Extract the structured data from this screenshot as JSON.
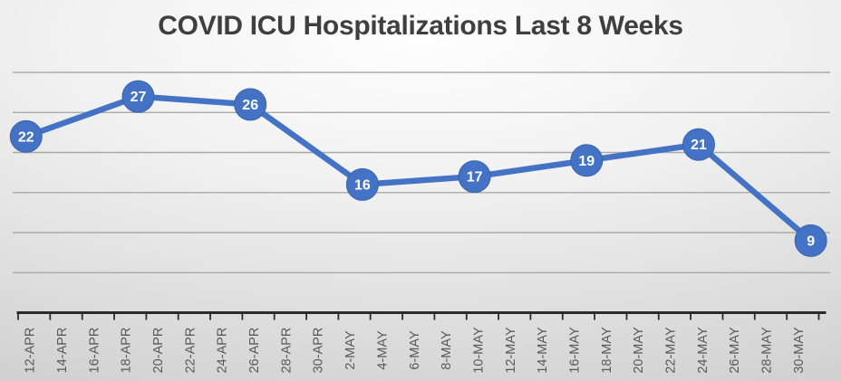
{
  "chart": {
    "colors": {
      "series_line": "#4472C4",
      "marker_fill": "#4472C4",
      "marker_border": "#3A62B0",
      "data_label_text": "#FFFFFF",
      "title_text": "#3F3F3F",
      "axis_label_text": "#595959",
      "gridline": "#A9A9A9",
      "axis_line": "#2B2B2B",
      "background_center": "#FEFEFE",
      "background_edge": "#C6C6C6"
    }
  },
  "chart_data": {
    "type": "line",
    "title": "COVID ICU Hospitalizations Last 8 Weeks",
    "xlabel": "",
    "ylabel": "",
    "ylim": [
      0,
      30
    ],
    "gridline_step": 5,
    "grid": "horizontal-only",
    "legend": "none",
    "marker_style": "filled-circle-with-centered-data-label",
    "x_axis_tick_labels": [
      "12-APR",
      "14-APR",
      "16-APR",
      "18-APR",
      "20-APR",
      "22-APR",
      "24-APR",
      "26-APR",
      "28-APR",
      "30-APR",
      "2-MAY",
      "4-MAY",
      "6-MAY",
      "8-MAY",
      "10-MAY",
      "12-MAY",
      "14-MAY",
      "16-MAY",
      "18-MAY",
      "20-MAY",
      "22-MAY",
      "24-MAY",
      "26-MAY",
      "28-MAY",
      "30-MAY"
    ],
    "x_axis_label_rotation_degrees": -90,
    "points": [
      {
        "date": "12-APR",
        "week_index": 0,
        "value": 22
      },
      {
        "date": "19-APR",
        "week_index": 1,
        "value": 27
      },
      {
        "date": "26-APR",
        "week_index": 2,
        "value": 26
      },
      {
        "date": "3-MAY",
        "week_index": 3,
        "value": 16
      },
      {
        "date": "10-MAY",
        "week_index": 4,
        "value": 17
      },
      {
        "date": "17-MAY",
        "week_index": 5,
        "value": 19
      },
      {
        "date": "24-MAY",
        "week_index": 6,
        "value": 21
      },
      {
        "date": "31-MAY",
        "week_index": 7,
        "value": 9
      }
    ],
    "values": [
      22,
      27,
      26,
      16,
      17,
      19,
      21,
      9
    ],
    "data_labels_shown": [
      22,
      27,
      26,
      16,
      17,
      19,
      21,
      9
    ]
  }
}
